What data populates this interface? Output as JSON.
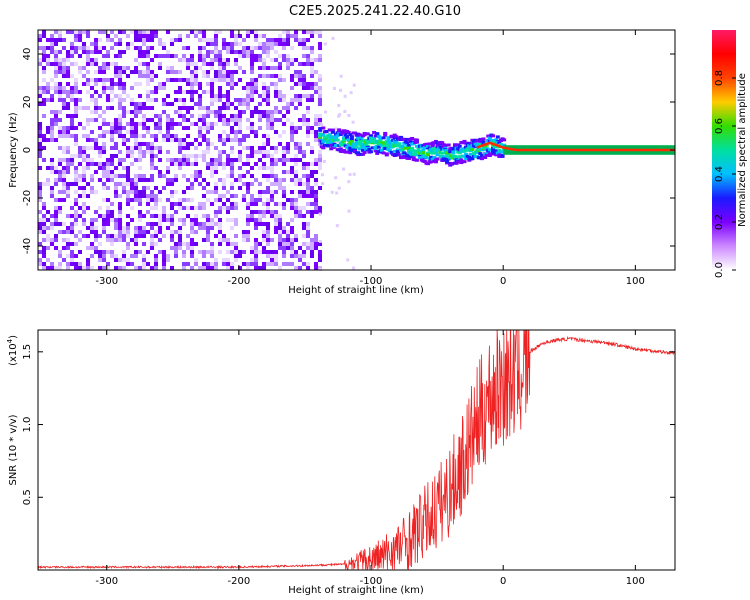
{
  "title": "C2E5.2025.241.22.40.G10",
  "colors": {
    "snr_line": "#ee2222",
    "doppler_trace": "#ff2a00",
    "track_line_green": "#00b050",
    "colormap": [
      "#ffffff",
      "#cc88ff",
      "#7a00ff",
      "#1a1aff",
      "#00bfff",
      "#00e0a0",
      "#33dd00",
      "#ffcc00",
      "#ff4400",
      "#ff0000",
      "#ff1a66"
    ]
  },
  "chart_data": [
    {
      "type": "heatmap",
      "xlabel": "Height of straight line (km)",
      "ylabel": "Frequency (Hz)",
      "xlim": [
        -352,
        130
      ],
      "ylim": [
        -50,
        50
      ],
      "xticks": [
        -300,
        -200,
        -100,
        0,
        100
      ],
      "yticks": [
        -40,
        -20,
        0,
        20,
        40
      ],
      "noise_region_x": [
        -352,
        -140
      ],
      "doppler_trace": {
        "x": [
          -140,
          -130,
          -120,
          -110,
          -100,
          -90,
          -80,
          -70,
          -60,
          -50,
          -40,
          -30,
          -20,
          -15,
          -10,
          0,
          10,
          130
        ],
        "y": [
          6,
          5,
          4,
          3,
          4,
          3,
          2,
          1,
          -1,
          0,
          -2,
          0,
          1,
          2,
          3,
          1,
          0,
          0
        ]
      },
      "colorbar": {
        "label": "Normalized spectral amplitude",
        "range": [
          0,
          1
        ],
        "ticks": [
          "0.0",
          "0.2",
          "0.4",
          "0.6",
          "0.8"
        ]
      }
    },
    {
      "type": "line",
      "xlabel": "Height of straight line (km)",
      "ylabel": "SNR (10 * v/v)",
      "y_scale_label": "(x10",
      "y_scale_exponent": "4",
      "xlim": [
        -352,
        130
      ],
      "ylim": [
        0,
        1.65
      ],
      "xticks": [
        -300,
        -200,
        -100,
        0,
        100
      ],
      "yticks": [
        0.5,
        1.0,
        1.5
      ],
      "ytick_labels": [
        "0.5",
        "1.0",
        "1.5"
      ],
      "series": [
        {
          "x": [
            -352,
            -200,
            -150,
            -120,
            -100,
            -90,
            -80,
            -70,
            -60,
            -50,
            -40,
            -30,
            -20,
            -10,
            0,
            10,
            20,
            30,
            40,
            50,
            60,
            70,
            80,
            90,
            100,
            110,
            120,
            130
          ],
          "y": [
            0.02,
            0.02,
            0.03,
            0.04,
            0.07,
            0.1,
            0.15,
            0.22,
            0.32,
            0.42,
            0.55,
            0.75,
            1.0,
            1.2,
            1.3,
            1.4,
            1.5,
            1.56,
            1.58,
            1.59,
            1.58,
            1.57,
            1.56,
            1.54,
            1.52,
            1.51,
            1.5,
            1.49
          ]
        }
      ]
    }
  ]
}
